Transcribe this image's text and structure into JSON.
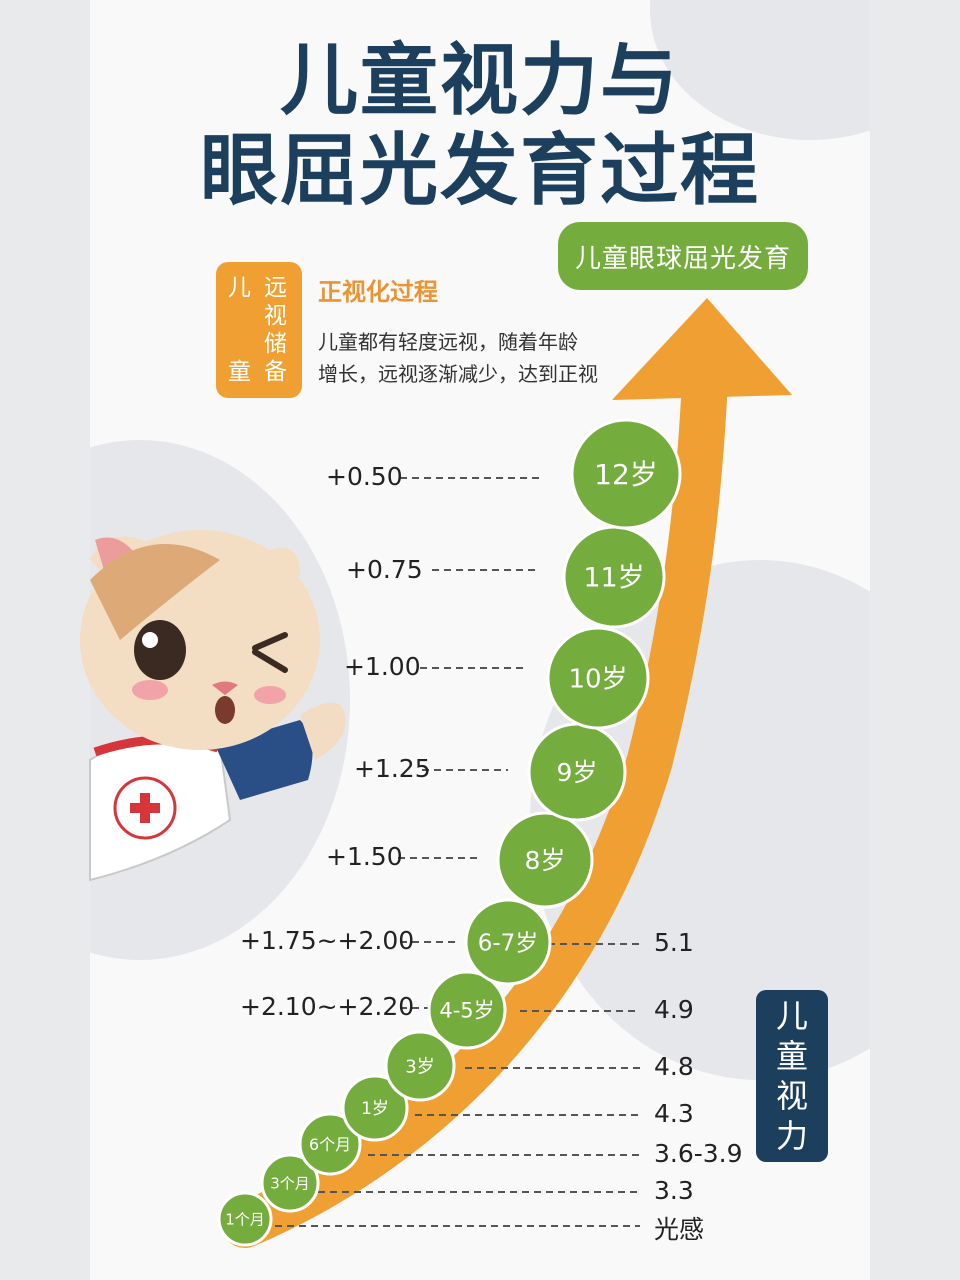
{
  "title_line1": "儿童视力与",
  "title_line2": "眼屈光发育过程",
  "badge": "儿童眼球屈光发育",
  "hyperopia_box": {
    "col1": [
      "儿",
      "童"
    ],
    "col2": [
      "远",
      "视",
      "储",
      "备"
    ]
  },
  "emmetropization": {
    "title": "正视化过程",
    "line1": "儿童都有轻度远视，随着年龄",
    "line2": "增长，远视逐渐减少，达到正视"
  },
  "vision_box": [
    "儿",
    "童",
    "视",
    "力"
  ],
  "stages": [
    {
      "age": "1个月",
      "vision": "光感"
    },
    {
      "age": "3个月",
      "vision": "3.3"
    },
    {
      "age": "6个月",
      "vision": "3.6-3.9"
    },
    {
      "age": "1岁",
      "vision": "4.3"
    },
    {
      "age": "3岁",
      "vision": "4.8"
    },
    {
      "age": "4-5岁",
      "refraction": "+2.10~+2.20",
      "vision": "4.9"
    },
    {
      "age": "6-7岁",
      "refraction": "+1.75~+2.00",
      "vision": "5.1"
    },
    {
      "age": "8岁",
      "refraction": "+1.50"
    },
    {
      "age": "9岁",
      "refraction": "+1.25"
    },
    {
      "age": "10岁",
      "refraction": "+1.00"
    },
    {
      "age": "11岁",
      "refraction": "+0.75"
    },
    {
      "age": "12岁",
      "refraction": "+0.50"
    }
  ],
  "colors": {
    "navy": "#1c3f5d",
    "orange": "#f0a032",
    "green": "#74ad3e"
  }
}
